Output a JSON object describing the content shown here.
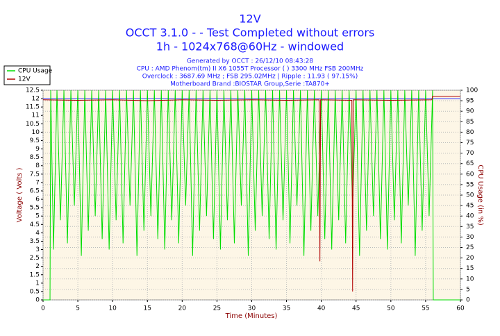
{
  "chart_data": {
    "type": "line",
    "title": "12V",
    "subtitle": [
      "OCCT 3.1.0 -  - Test Completed without errors",
      "1h - 1024x768@60Hz - windowed"
    ],
    "info": [
      "Generated by OCCT : 26/12/10 08:43:28",
      "CPU : AMD Phenom(tm) II X6 1055T Processor (  ) 3300 MHz FSB 200MHz",
      "Overclock : 3687.69 MHz ; FSB 295.02MHz | Ripple : 11.93 ( 97.15%)",
      "Motherboard Brand :BIOSTAR Group,Serie :TA870+"
    ],
    "xlabel": "Time (Minutes)",
    "ylabel": "Voltage ( Volts )",
    "y2label": "CPU Usage (in %)",
    "xlim": [
      0,
      60
    ],
    "xticks": [
      0,
      5,
      10,
      15,
      20,
      25,
      30,
      35,
      40,
      45,
      50,
      55,
      60
    ],
    "ylim": [
      0,
      12.5
    ],
    "yticks": [
      0,
      0.5,
      1,
      1.5,
      2,
      2.5,
      3,
      3.5,
      4,
      4.5,
      5,
      5.5,
      6,
      6.5,
      7,
      7.5,
      8,
      8.5,
      9,
      9.5,
      10,
      10.5,
      11,
      11.5,
      12,
      12.5
    ],
    "y2lim": [
      0,
      100
    ],
    "y2ticks": [
      0,
      5,
      10,
      15,
      20,
      25,
      30,
      35,
      40,
      45,
      50,
      55,
      60,
      65,
      70,
      75,
      80,
      85,
      90,
      95,
      100
    ],
    "grid": true,
    "legend": "top-left",
    "reference": {
      "value": 12,
      "color": "#3030ff"
    },
    "series": [
      {
        "name": "CPU Usage",
        "color": "#00dd00",
        "axis": "y2",
        "x": [
          0,
          1,
          1.1,
          1.5,
          2,
          2.5,
          3,
          3.5,
          4,
          4.5,
          5,
          5.5,
          6,
          6.5,
          7,
          7.5,
          8,
          8.5,
          9,
          9.5,
          10,
          10.5,
          11,
          11.5,
          12,
          12.5,
          13,
          13.5,
          14,
          14.5,
          15,
          15.5,
          16,
          16.5,
          17,
          17.5,
          18,
          18.5,
          19,
          19.5,
          20,
          20.5,
          21,
          21.5,
          22,
          22.5,
          23,
          23.5,
          24,
          24.5,
          25,
          25.5,
          26,
          26.5,
          27,
          27.5,
          28,
          28.5,
          29,
          29.5,
          30,
          30.5,
          31,
          31.5,
          32,
          32.5,
          33,
          33.5,
          34,
          34.5,
          35,
          35.5,
          36,
          36.5,
          37,
          37.5,
          38,
          38.5,
          39,
          39.5,
          40,
          40.5,
          41,
          41.5,
          42,
          42.5,
          43,
          43.5,
          44,
          44.5,
          45,
          45.5,
          46,
          46.5,
          47,
          47.5,
          48,
          48.5,
          49,
          49.5,
          50,
          50.5,
          51,
          51.5,
          52,
          52.5,
          53,
          53.5,
          54,
          54.5,
          55,
          55.5,
          56,
          56.1,
          60
        ],
        "values": [
          0,
          0,
          100,
          24,
          100,
          38,
          100,
          27,
          100,
          45,
          100,
          21,
          100,
          33,
          100,
          40,
          100,
          29,
          100,
          24,
          100,
          38,
          100,
          27,
          100,
          45,
          100,
          21,
          100,
          33,
          100,
          40,
          100,
          29,
          100,
          24,
          100,
          38,
          100,
          27,
          100,
          45,
          100,
          21,
          100,
          33,
          100,
          40,
          100,
          29,
          100,
          24,
          100,
          38,
          100,
          27,
          100,
          45,
          100,
          21,
          100,
          33,
          100,
          40,
          100,
          29,
          100,
          24,
          100,
          38,
          100,
          27,
          100,
          45,
          100,
          21,
          100,
          33,
          100,
          40,
          100,
          29,
          100,
          24,
          100,
          38,
          100,
          27,
          100,
          45,
          100,
          21,
          100,
          33,
          100,
          40,
          100,
          29,
          100,
          24,
          100,
          38,
          100,
          27,
          100,
          45,
          100,
          21,
          100,
          33,
          100,
          40,
          100,
          0,
          0
        ]
      },
      {
        "name": "12V",
        "color": "#b00000",
        "x": [
          0,
          5,
          10,
          15,
          20,
          25,
          30,
          35,
          39.7,
          39.8,
          39.9,
          44.4,
          44.5,
          44.6,
          50,
          55.9,
          56,
          60
        ],
        "values": [
          11.93,
          11.9,
          11.93,
          11.88,
          11.93,
          11.9,
          11.93,
          11.9,
          11.93,
          2.3,
          11.93,
          11.9,
          0.5,
          11.93,
          11.9,
          11.93,
          12.15,
          12.15
        ]
      }
    ]
  }
}
